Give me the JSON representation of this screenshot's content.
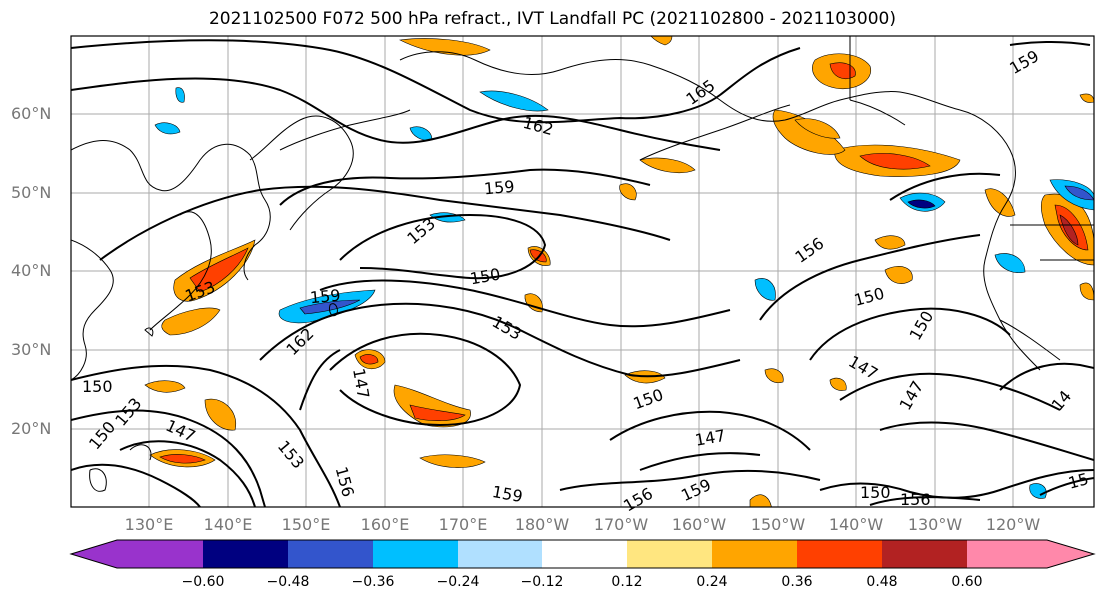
{
  "title": "2021102500 F072 500 hPa refract., IVT Landfall PC (2021102800 - 2021103000)",
  "lat_labels": [
    "60°N",
    "50°N",
    "40°N",
    "30°N",
    "20°N"
  ],
  "lon_labels": [
    "130°E",
    "140°E",
    "150°E",
    "160°E",
    "170°E",
    "180°W",
    "170°W",
    "160°W",
    "150°W",
    "140°W",
    "130°W",
    "120°W"
  ],
  "contour_labels": [
    "165",
    "162",
    "159",
    "159",
    "153",
    "153",
    "150",
    "150",
    "150",
    "150",
    "150",
    "153",
    "156",
    "159",
    "162",
    "147",
    "147",
    "147",
    "147",
    "147",
    "153",
    "156",
    "159",
    "159",
    "156",
    "150",
    "156",
    "15",
    "14",
    "150",
    "153"
  ],
  "colorbar": {
    "ticks": [
      "−0.60",
      "−0.48",
      "−0.36",
      "−0.24",
      "−0.12",
      "0.12",
      "0.24",
      "0.36",
      "0.48",
      "0.60"
    ],
    "colors": [
      "#9933cc",
      "#000080",
      "#3355cc",
      "#00bfff",
      "#b0e0ff",
      "#ffffff",
      "#ffe680",
      "#ffa500",
      "#ff4000",
      "#b22222",
      "#ff88aa"
    ]
  }
}
